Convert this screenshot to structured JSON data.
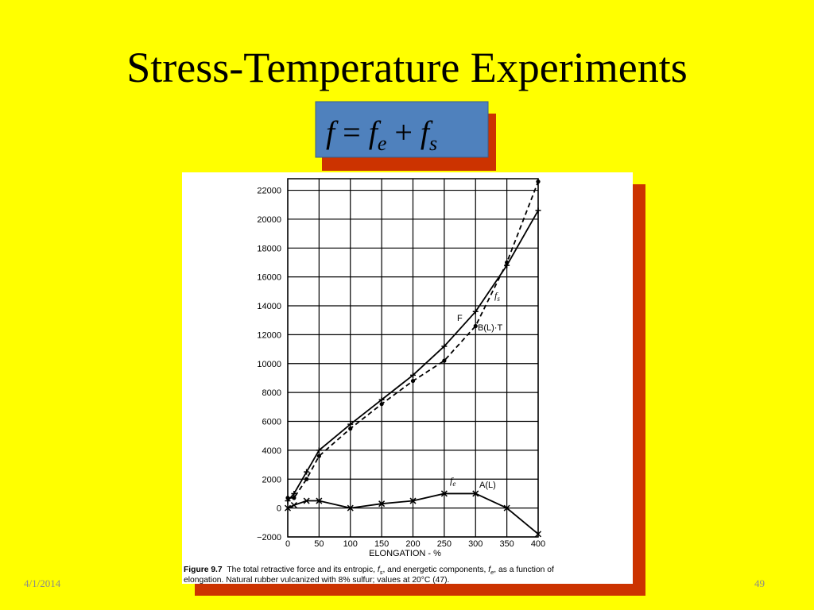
{
  "slide": {
    "title": "Stress-Temperature Experiments",
    "formula": [
      {
        "text": "f"
      },
      {
        "text": "="
      },
      {
        "text": "f",
        "sub": "e"
      },
      {
        "text": "+"
      },
      {
        "text": "f",
        "sub": "s"
      }
    ],
    "caption": {
      "label": "Figure 9.7",
      "line1": [
        {
          "text": "The total retractive force and its entropic, "
        },
        {
          "text": "f",
          "sub": "s"
        },
        {
          "text": ", and energetic components, "
        },
        {
          "text": "f",
          "sub": "e"
        },
        {
          "text": ", as a function of"
        }
      ],
      "line2": "elongation. Natural rubber vulcanized with 8% sulfur; values at 20°C (47)."
    },
    "date": "4/1/2014",
    "page_number": "49"
  },
  "chart_data": {
    "type": "line",
    "x_label": "ELONGATION - %",
    "x": [
      0,
      10,
      30,
      50,
      100,
      150,
      200,
      250,
      300,
      350,
      400
    ],
    "series": [
      {
        "name": "F",
        "color": "#000000",
        "values": [
          500,
          1000,
          2500,
          4000,
          5800,
          7500,
          9200,
          11200,
          13600,
          16800,
          20600
        ]
      },
      {
        "name": "B(L)·T",
        "color": "#000000",
        "values": [
          700,
          700,
          2000,
          3600,
          5500,
          7200,
          8800,
          10200,
          12600,
          17000,
          22600
        ]
      },
      {
        "name": "A(L)",
        "color": "#000000",
        "values": [
          0,
          200,
          500,
          500,
          0,
          300,
          500,
          1000,
          1000,
          0,
          -1800
        ]
      }
    ],
    "annotations": [
      {
        "text": "f",
        "sub": "s"
      },
      {
        "text": "f",
        "sub": "e"
      }
    ],
    "xlim": [
      0,
      400
    ],
    "ylim": [
      -2000,
      22800
    ],
    "xticks": [
      0,
      50,
      100,
      150,
      200,
      250,
      300,
      350,
      400
    ],
    "yticks": [
      {
        "value": -2000,
        "label": "−2000"
      },
      0,
      2000,
      4000,
      6000,
      8000,
      10000,
      12000,
      14000,
      16000,
      18000,
      20000,
      22000
    ],
    "grid": true
  }
}
